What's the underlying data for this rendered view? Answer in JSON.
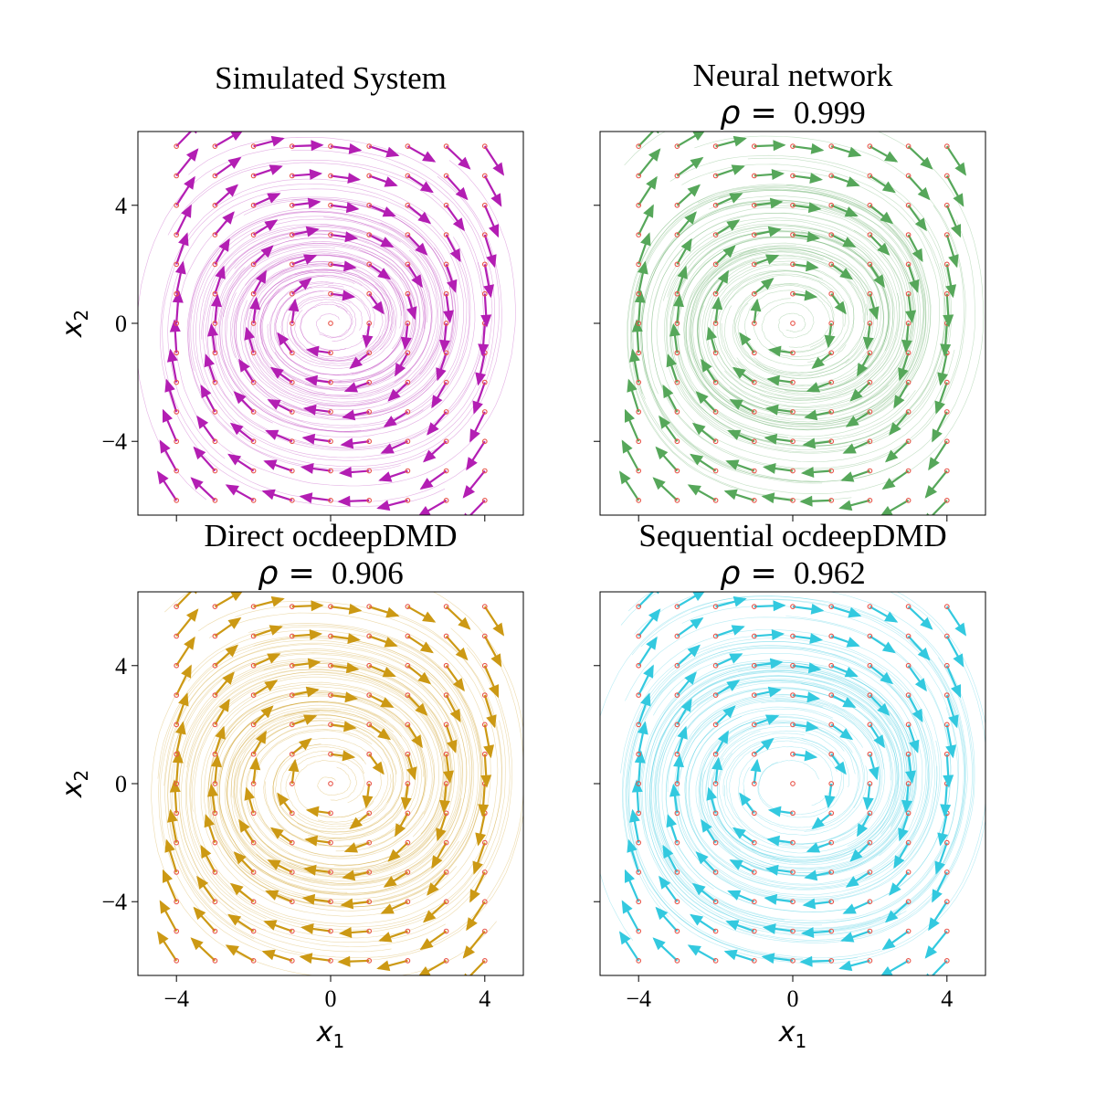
{
  "colors": {
    "simulated": "#b31eb3",
    "neural": "#56a75a",
    "direct": "#cc9914",
    "sequential": "#33c9df",
    "start_marker": "#e8554a"
  },
  "chart_data": [
    {
      "id": "simulated",
      "type": "quiver",
      "title_lines": [
        "Simulated System"
      ],
      "rho": null,
      "xlabel": "x",
      "xlabel_sub": "1",
      "ylabel": "x",
      "ylabel_sub": "2",
      "show_xlabel": false,
      "show_ylabel": true,
      "show_xticklabels": false,
      "show_yticklabels": true,
      "xlim": [
        -5,
        5
      ],
      "ylim": [
        -6.5,
        6.5
      ],
      "xticks": [
        -4,
        0,
        4
      ],
      "yticks": [
        -4,
        0,
        4
      ],
      "grid_x": [
        -4,
        -3,
        -2,
        -1,
        0,
        1,
        2,
        3,
        4
      ],
      "grid_y": [
        -6,
        -5,
        -4,
        -3,
        -2,
        -1,
        0,
        1,
        2,
        3,
        4,
        5,
        6
      ],
      "color_key": "simulated"
    },
    {
      "id": "neural",
      "type": "quiver",
      "title_lines": [
        "Neural network"
      ],
      "rho": "0.999",
      "xlabel": "x",
      "xlabel_sub": "1",
      "ylabel": "x",
      "ylabel_sub": "2",
      "show_xlabel": false,
      "show_ylabel": false,
      "show_xticklabels": false,
      "show_yticklabels": false,
      "xlim": [
        -5,
        5
      ],
      "ylim": [
        -6.5,
        6.5
      ],
      "xticks": [
        -4,
        0,
        4
      ],
      "yticks": [
        -4,
        0,
        4
      ],
      "grid_x": [
        -4,
        -3,
        -2,
        -1,
        0,
        1,
        2,
        3,
        4
      ],
      "grid_y": [
        -6,
        -5,
        -4,
        -3,
        -2,
        -1,
        0,
        1,
        2,
        3,
        4,
        5,
        6
      ],
      "color_key": "neural"
    },
    {
      "id": "direct",
      "type": "quiver",
      "title_lines": [
        "Direct ocdeepDMD"
      ],
      "rho": "0.906",
      "xlabel": "x",
      "xlabel_sub": "1",
      "ylabel": "x",
      "ylabel_sub": "2",
      "show_xlabel": true,
      "show_ylabel": true,
      "show_xticklabels": true,
      "show_yticklabels": true,
      "xlim": [
        -5,
        5
      ],
      "ylim": [
        -6.5,
        6.5
      ],
      "xticks": [
        -4,
        0,
        4
      ],
      "yticks": [
        -4,
        0,
        4
      ],
      "grid_x": [
        -4,
        -3,
        -2,
        -1,
        0,
        1,
        2,
        3,
        4
      ],
      "grid_y": [
        -6,
        -5,
        -4,
        -3,
        -2,
        -1,
        0,
        1,
        2,
        3,
        4,
        5,
        6
      ],
      "color_key": "direct"
    },
    {
      "id": "sequential",
      "type": "quiver",
      "title_lines": [
        "Sequential ocdeepDMD"
      ],
      "rho": "0.962",
      "xlabel": "x",
      "xlabel_sub": "1",
      "ylabel": "x",
      "ylabel_sub": "2",
      "show_xlabel": true,
      "show_ylabel": false,
      "show_xticklabels": true,
      "show_yticklabels": false,
      "xlim": [
        -5,
        5
      ],
      "ylim": [
        -6.5,
        6.5
      ],
      "xticks": [
        -4,
        0,
        4
      ],
      "yticks": [
        -4,
        0,
        4
      ],
      "grid_x": [
        -4,
        -3,
        -2,
        -1,
        0,
        1,
        2,
        3,
        4
      ],
      "grid_y": [
        -6,
        -5,
        -4,
        -3,
        -2,
        -1,
        0,
        1,
        2,
        3,
        4,
        5,
        6
      ],
      "color_key": "sequential"
    }
  ]
}
